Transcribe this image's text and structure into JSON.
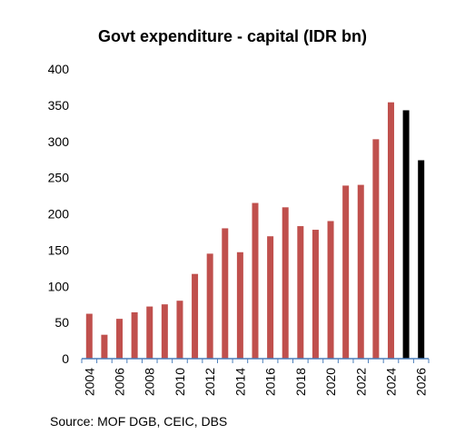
{
  "chart_data": {
    "type": "bar",
    "title": "Govt expenditure - capital (IDR bn)",
    "xlabel": "",
    "ylabel": "",
    "ylim": [
      0,
      400
    ],
    "yticks": [
      0,
      50,
      100,
      150,
      200,
      250,
      300,
      350,
      400
    ],
    "x_tick_labels": [
      "2004",
      "2006",
      "2008",
      "2010",
      "2012",
      "2014",
      "2016",
      "2018",
      "2020",
      "2022",
      "2024",
      "2026"
    ],
    "grid": false,
    "legend": "none",
    "categories": [
      2004,
      2005,
      2006,
      2007,
      2008,
      2009,
      2010,
      2011,
      2012,
      2013,
      2014,
      2015,
      2016,
      2017,
      2018,
      2019,
      2020,
      2021,
      2022,
      2023,
      2024,
      2025,
      2026
    ],
    "values": [
      62,
      33,
      55,
      64,
      72,
      75,
      80,
      117,
      145,
      180,
      147,
      215,
      169,
      209,
      183,
      178,
      190,
      239,
      240,
      303,
      354,
      343,
      274
    ],
    "colors": {
      "actual": "#c0504d",
      "forecast": "#000000",
      "axis": "#4a7ebb"
    },
    "forecast_from": 2025
  },
  "source": "Source: MOF DGB, CEIC, DBS"
}
